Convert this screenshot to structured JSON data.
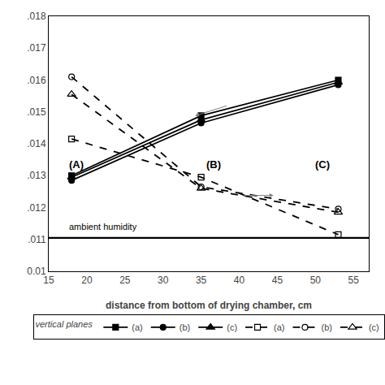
{
  "chart_data": {
    "type": "line",
    "x": [
      18,
      35,
      53
    ],
    "series": [
      {
        "name": "(a)",
        "color": "black",
        "marker": "square",
        "line_style": "solid",
        "values": [
          0.013,
          0.01488,
          0.016
        ]
      },
      {
        "name": "(b)",
        "color": "black",
        "marker": "circle",
        "line_style": "solid",
        "values": [
          0.01285,
          0.01465,
          0.01585
        ]
      },
      {
        "name": "(c)",
        "color": "black",
        "marker": "triangle-up",
        "line_style": "solid",
        "values": [
          0.01295,
          0.01475,
          0.01593
        ]
      },
      {
        "name": "(a)",
        "color": "black",
        "marker": "square-open",
        "line_style": "dashed",
        "values": [
          0.01415,
          0.01295,
          0.01115
        ]
      },
      {
        "name": "(b)",
        "color": "black",
        "marker": "circle-open",
        "line_style": "dashed",
        "values": [
          0.0161,
          0.01265,
          0.01195
        ]
      },
      {
        "name": "(c)",
        "color": "black",
        "marker": "triangle-up-open",
        "line_style": "dashed",
        "values": [
          0.01555,
          0.0126,
          0.01185
        ]
      }
    ],
    "legend_title": "vertical planes",
    "legend": "bottom",
    "xlabel": "distance from bottom of drying chamber, cm",
    "xlim": [
      15,
      57
    ],
    "xticks": [
      15,
      20,
      25,
      30,
      35,
      40,
      45,
      50,
      55
    ],
    "ylim": [
      0.01,
      0.018
    ],
    "yticks": [
      0.01,
      {
        "value": 0.011,
        "label": ".011"
      },
      {
        "value": 0.012,
        "label": ".012"
      },
      {
        "value": 0.013,
        "label": ".013"
      },
      {
        "value": 0.014,
        "label": ".014"
      },
      {
        "value": 0.015,
        "label": ".015"
      },
      {
        "value": 0.016,
        "label": ".016"
      },
      {
        "value": 0.017,
        "label": ".017"
      },
      {
        "value": 0.018,
        "label": ".018"
      }
    ],
    "grid": false,
    "hline": {
      "y": 0.01105,
      "color": "black",
      "text": "ambient humidity",
      "text_x": 17.5,
      "text_y": 0.0112
    },
    "annotations": [
      {
        "text": "(A)",
        "x": 17.5,
        "y": 0.0131
      },
      {
        "text": "(B)",
        "x": 35.5,
        "y": 0.0131
      },
      {
        "text": "(C)",
        "x": 49.8,
        "y": 0.0131
      }
    ],
    "arrows": [
      {
        "from": [
          38.5,
          0.0152
        ],
        "to": [
          34.2,
          0.01488
        ],
        "color": "gray"
      },
      {
        "from": [
          40.5,
          0.01238
        ],
        "to": [
          44.5,
          0.01238
        ],
        "color": "gray"
      }
    ]
  }
}
